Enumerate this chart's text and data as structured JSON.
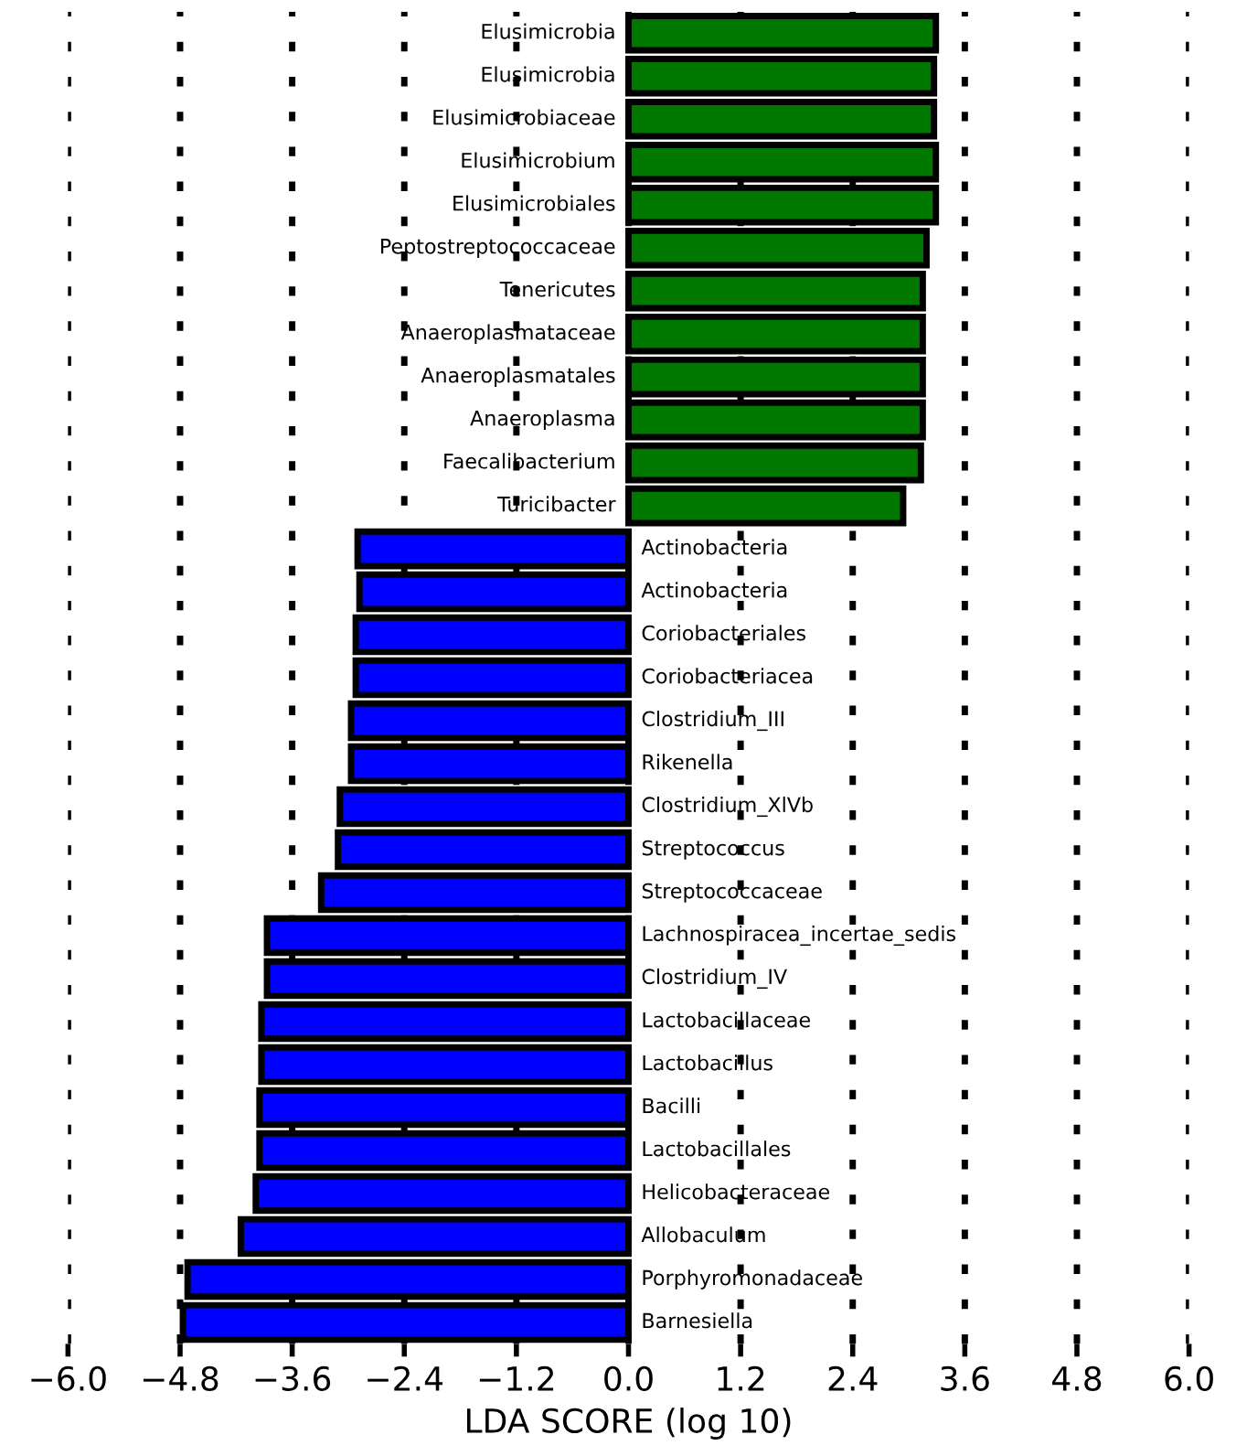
{
  "chart_data": {
    "type": "bar",
    "orientation": "horizontal",
    "xlabel": "LDA SCORE (log 10)",
    "categories": [
      "Elusimicrobia",
      "Elusimicrobia",
      "Elusimicrobiaceae",
      "Elusimicrobium",
      "Elusimicrobiales",
      "Peptostreptococcaceae",
      "Tenericutes",
      "Anaeroplasmataceae",
      "Anaeroplasmatales",
      "Anaeroplasma",
      "Faecalibacterium",
      "Turicibacter",
      "Actinobacteria",
      "Actinobacteria",
      "Coriobacteriales",
      "Coriobacteriacea",
      "Clostridium_III",
      "Rikenella",
      "Clostridium_XlVb",
      "Streptococcus",
      "Streptococcaceae",
      "Lachnospiracea_incertae_sedis",
      "Clostridium_IV",
      "Lactobacillaceae",
      "Lactobacillus",
      "Bacilli",
      "Lactobacillales",
      "Helicobacteraceae",
      "Allobaculum",
      "Porphyromonadaceae",
      "Barnesiella"
    ],
    "values": [
      3.29,
      3.27,
      3.27,
      3.29,
      3.29,
      3.19,
      3.15,
      3.15,
      3.15,
      3.15,
      3.13,
      2.94,
      -2.9,
      -2.88,
      -2.92,
      -2.92,
      -2.97,
      -2.97,
      -3.09,
      -3.11,
      -3.29,
      -3.87,
      -3.87,
      -3.93,
      -3.93,
      -3.95,
      -3.95,
      -3.99,
      -4.15,
      -4.72,
      -4.77
    ],
    "colors": [
      "#007800",
      "#007800",
      "#007800",
      "#007800",
      "#007800",
      "#007800",
      "#007800",
      "#007800",
      "#007800",
      "#007800",
      "#007800",
      "#007800",
      "#0000ff",
      "#0000ff",
      "#0000ff",
      "#0000ff",
      "#0000ff",
      "#0000ff",
      "#0000ff",
      "#0000ff",
      "#0000ff",
      "#0000ff",
      "#0000ff",
      "#0000ff",
      "#0000ff",
      "#0000ff",
      "#0000ff",
      "#0000ff",
      "#0000ff",
      "#0000ff",
      "#0000ff"
    ],
    "xlim": [
      -6.0,
      6.0
    ],
    "xticks": [
      {
        "value": -6.0,
        "label": "−6.0"
      },
      {
        "value": -4.8,
        "label": "−4.8"
      },
      {
        "value": -3.6,
        "label": "−3.6"
      },
      {
        "value": -2.4,
        "label": "−2.4"
      },
      {
        "value": -1.2,
        "label": "−1.2"
      },
      {
        "value": 0.0,
        "label": "0.0"
      },
      {
        "value": 1.2,
        "label": "1.2"
      },
      {
        "value": 2.4,
        "label": "2.4"
      },
      {
        "value": 3.6,
        "label": "3.6"
      },
      {
        "value": 4.8,
        "label": "4.8"
      },
      {
        "value": 6.0,
        "label": "6.0"
      }
    ],
    "grid": "x",
    "tick_labels": "x"
  }
}
